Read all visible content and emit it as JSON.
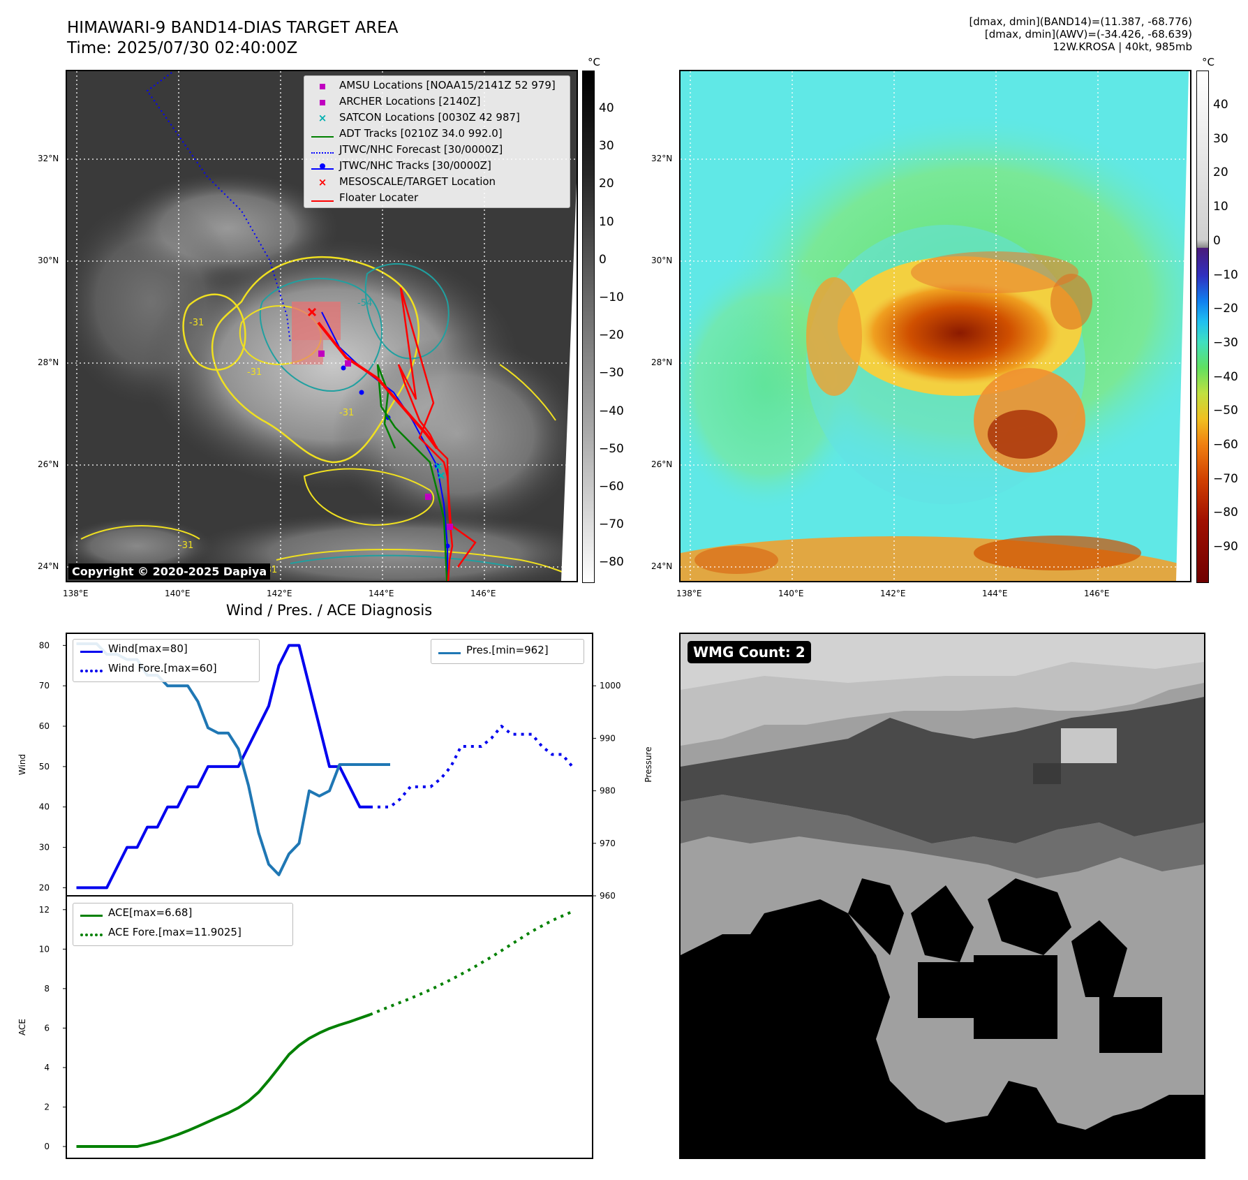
{
  "header": {
    "title_line1": "HIMAWARI-9 BAND14-DIAS TARGET AREA",
    "title_line2": "Time: 2025/07/30 02:40:00Z",
    "info_line1": "[dmax, dmin](BAND14)=(11.387, -68.776)",
    "info_line2": "[dmax, dmin](AWV)=(-34.426, -68.639)",
    "info_line3": "12W.KROSA | 40kt, 985mb"
  },
  "map": {
    "lat_labels": [
      "32°N",
      "30°N",
      "28°N",
      "26°N",
      "24°N"
    ],
    "lon_labels": [
      "138°E",
      "140°E",
      "142°E",
      "144°E",
      "146°E"
    ],
    "copyright": "Copyright © 2020-2025 Dapiya",
    "contour_labels": [
      "-54",
      "-31",
      "-31",
      "-31",
      "-31",
      "-31"
    ],
    "legend": [
      {
        "label": "AMSU Locations [NOAA15/2141Z 52 979]",
        "symbol": "square",
        "color": "#c000c0"
      },
      {
        "label": "ARCHER Locations [2140Z]",
        "symbol": "square",
        "color": "#c000c0"
      },
      {
        "label": "SATCON Locations [0030Z 42 987]",
        "symbol": "x",
        "color": "#00b0b0"
      },
      {
        "label": "ADT Tracks [0210Z 34.0 992.0]",
        "symbol": "line",
        "color": "#008000"
      },
      {
        "label": "JTWC/NHC Forecast [30/0000Z]",
        "symbol": "dotted",
        "color": "#0000ff"
      },
      {
        "label": "JTWC/NHC Tracks [30/0000Z]",
        "symbol": "line-dot",
        "color": "#0000ff"
      },
      {
        "label": "MESOSCALE/TARGET Location",
        "symbol": "x",
        "color": "#ff0000"
      },
      {
        "label": "Floater Locater",
        "symbol": "line",
        "color": "#ff0000"
      }
    ]
  },
  "colorbar_gray": {
    "unit": "°C",
    "ticks": [
      "40",
      "30",
      "20",
      "10",
      "0",
      "−10",
      "−20",
      "−30",
      "−40",
      "−50",
      "−60",
      "−70",
      "−80"
    ]
  },
  "colorbar_color": {
    "unit": "°C",
    "ticks": [
      "40",
      "30",
      "20",
      "10",
      "0",
      "−10",
      "−20",
      "−30",
      "−40",
      "−50",
      "−60",
      "−70",
      "−80",
      "−90"
    ]
  },
  "wmg": {
    "label": "WMG Count: 2"
  },
  "chart_data": [
    {
      "type": "line",
      "title": "Wind / Pres. / ACE Diagnosis",
      "ylabel": "Wind",
      "y2label": "Pressure",
      "ylim": [
        18,
        83
      ],
      "y2lim": [
        960,
        1010
      ],
      "yticks": [
        "80",
        "70",
        "60",
        "50",
        "40",
        "30",
        "20"
      ],
      "y2ticks": [
        "1000",
        "990",
        "980",
        "970",
        "960"
      ],
      "series": [
        {
          "name": "Wind[max=80]",
          "style": "solid",
          "color": "#0000ee",
          "axis": "left",
          "x": [
            0,
            1,
            2,
            3,
            4,
            5,
            6,
            7,
            8,
            9,
            10,
            11,
            12,
            13,
            14,
            15,
            16,
            17,
            18,
            19,
            20,
            21,
            22,
            23,
            24,
            25,
            26,
            27,
            28,
            29
          ],
          "values": [
            20,
            20,
            20,
            20,
            25,
            30,
            30,
            35,
            35,
            40,
            40,
            45,
            45,
            50,
            50,
            50,
            50,
            55,
            60,
            65,
            75,
            80,
            80,
            70,
            60,
            50,
            50,
            45,
            40,
            40
          ]
        },
        {
          "name": "Wind Fore.[max=60]",
          "style": "dotted",
          "color": "#0000ee",
          "axis": "left",
          "x": [
            29,
            30,
            31,
            32,
            33,
            34,
            35,
            36,
            37,
            38,
            39,
            40,
            41,
            42,
            43,
            44,
            45,
            46,
            47,
            48,
            49
          ],
          "values": [
            40,
            40,
            40,
            42,
            45,
            45,
            45,
            47,
            50,
            55,
            55,
            55,
            57,
            60,
            58,
            58,
            58,
            55,
            53,
            53,
            50
          ]
        },
        {
          "name": "Pres.[min=962]",
          "style": "solid",
          "color": "#1f77b4",
          "axis": "right",
          "x": [
            0,
            1,
            2,
            3,
            4,
            5,
            6,
            7,
            8,
            9,
            10,
            11,
            12,
            13,
            14,
            15,
            16,
            17,
            18,
            19,
            20,
            21,
            22,
            23,
            24,
            25,
            26,
            27,
            28,
            29,
            30,
            31
          ],
          "values": [
            1008,
            1008,
            1008,
            1006,
            1006,
            1005,
            1005,
            1002,
            1002,
            1000,
            1000,
            1000,
            997,
            992,
            991,
            991,
            988,
            981,
            972,
            966,
            964,
            968,
            970,
            980,
            979,
            980,
            985,
            985,
            985,
            985,
            985,
            985
          ]
        }
      ]
    },
    {
      "type": "line",
      "ylabel": "ACE",
      "ylim": [
        -0.6,
        12.7
      ],
      "yticks": [
        "12",
        "10",
        "8",
        "6",
        "4",
        "2",
        "0"
      ],
      "series": [
        {
          "name": "ACE[max=6.68]",
          "style": "solid",
          "color": "#008000",
          "x": [
            0,
            2,
            4,
            6,
            7,
            8,
            9,
            10,
            11,
            12,
            13,
            14,
            15,
            16,
            17,
            18,
            19,
            20,
            21,
            22,
            23,
            24,
            25,
            26,
            27,
            28,
            29
          ],
          "values": [
            0,
            0,
            0,
            0,
            0.12,
            0.25,
            0.42,
            0.6,
            0.8,
            1.02,
            1.25,
            1.48,
            1.7,
            1.96,
            2.3,
            2.75,
            3.35,
            4.0,
            4.66,
            5.12,
            5.48,
            5.75,
            5.98,
            6.16,
            6.32,
            6.5,
            6.68
          ]
        },
        {
          "name": "ACE Fore.[max=11.9025]",
          "style": "dotted",
          "color": "#008000",
          "x": [
            29,
            31,
            33,
            35,
            37,
            39,
            41,
            43,
            45,
            47,
            49
          ],
          "values": [
            6.68,
            7.1,
            7.5,
            7.95,
            8.45,
            9.0,
            9.6,
            10.25,
            10.9,
            11.45,
            11.9025
          ]
        }
      ]
    }
  ],
  "colors": {
    "accent_red": "#ff0000",
    "accent_blue": "#0000ff",
    "accent_green": "#008000",
    "pres_blue": "#1f77b4"
  }
}
